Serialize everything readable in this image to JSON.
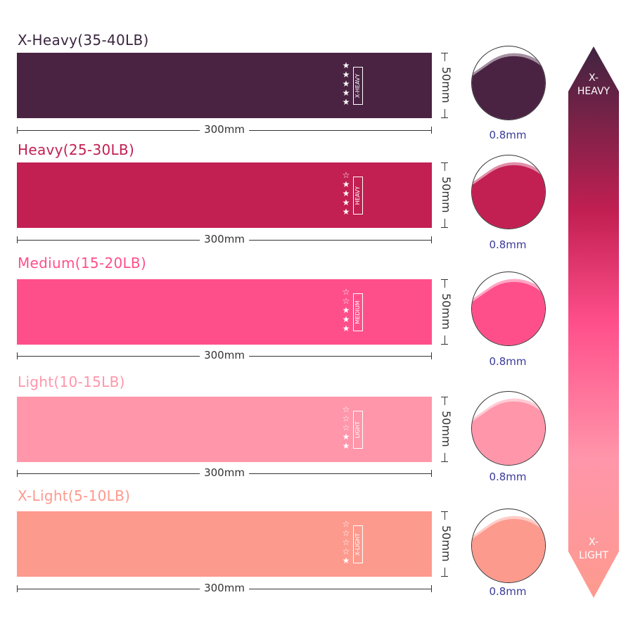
{
  "bands": [
    {
      "title": "X-Heavy(35-40LB)",
      "tag": "X-HEAVY",
      "rating": 5,
      "color": "#4a2343",
      "title_color": "#3b2640",
      "length": "300mm",
      "width": "50mm",
      "thickness": "0.8mm"
    },
    {
      "title": "Heavy(25-30LB)",
      "tag": "HEAVY",
      "rating": 4,
      "color": "#c21f52",
      "title_color": "#c21f52",
      "length": "300mm",
      "width": "50mm",
      "thickness": "0.8mm"
    },
    {
      "title": "Medium(15-20LB)",
      "tag": "MEDIUM",
      "rating": 3,
      "color": "#ff4f8b",
      "title_color": "#ff4f8b",
      "length": "300mm",
      "width": "50mm",
      "thickness": "0.8mm"
    },
    {
      "title": "Light(10-15LB)",
      "tag": "LIGHT",
      "rating": 2,
      "color": "#ff96aa",
      "title_color": "#ff96aa",
      "length": "300mm",
      "width": "50mm",
      "thickness": "0.8mm"
    },
    {
      "title": "X-Light(5-10LB)",
      "tag": "X-LIGHT",
      "rating": 1,
      "color": "#fd9a8e",
      "title_color": "#fd9a8e",
      "length": "300mm",
      "width": "50mm",
      "thickness": "0.8mm"
    }
  ],
  "scale": {
    "top_label": "X-\nHEAVY",
    "bottom_label": "X-\nLIGHT",
    "gradient": [
      "#3f2440",
      "#c21f52",
      "#ff4f8b",
      "#ff96aa",
      "#fd9a8e"
    ]
  },
  "icons": {
    "star_filled": "star-filled-icon",
    "star_empty": "star-empty-icon"
  }
}
